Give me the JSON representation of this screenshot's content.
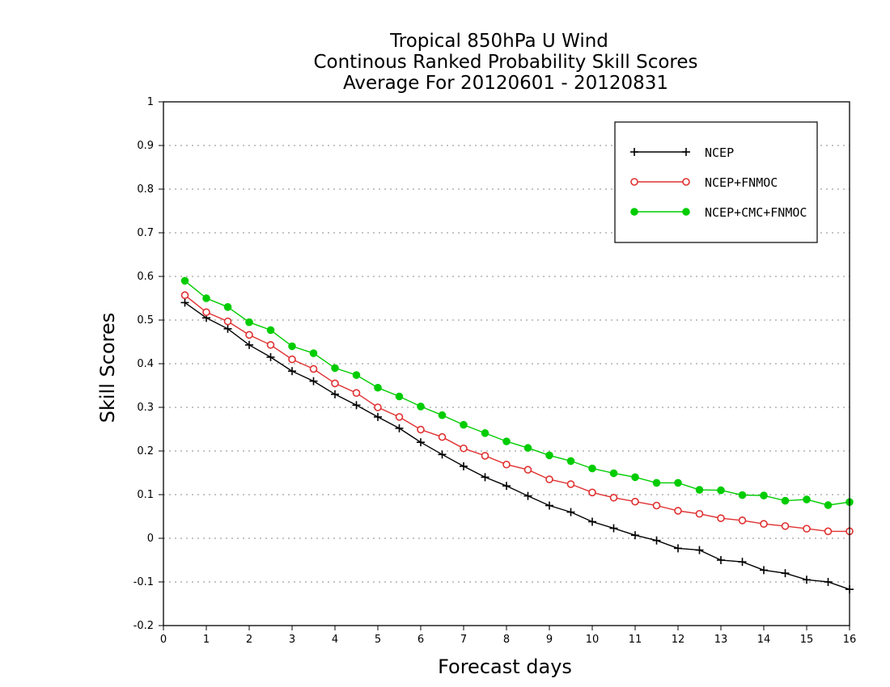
{
  "chart_data": {
    "type": "line",
    "title_lines": [
      "Tropical 850hPa U Wind",
      "Continous Ranked Probability Skill Scores",
      "Average For 20120601 - 20120831"
    ],
    "xlabel": "Forecast days",
    "ylabel": "Skill Scores",
    "xlim": [
      0,
      16
    ],
    "ylim": [
      -0.2,
      1
    ],
    "x_ticks": [
      "0",
      "1",
      "2",
      "3",
      "4",
      "5",
      "6",
      "7",
      "8",
      "9",
      "10",
      "11",
      "12",
      "13",
      "14",
      "15",
      "16"
    ],
    "y_ticks": [
      "-0.2",
      "-0.1",
      "0",
      "0.1",
      "0.2",
      "0.3",
      "0.4",
      "0.5",
      "0.6",
      "0.7",
      "0.8",
      "0.9",
      "1"
    ],
    "grid": "horizontal dotted",
    "legend_position": "top-right",
    "x": [
      0.5,
      1,
      1.5,
      2,
      2.5,
      3,
      3.5,
      4,
      4.5,
      5,
      5.5,
      6,
      6.5,
      7,
      7.5,
      8,
      8.5,
      9,
      9.5,
      10,
      10.5,
      11,
      11.5,
      12,
      12.5,
      13,
      13.5,
      14,
      14.5,
      15,
      15.5,
      16
    ],
    "series": [
      {
        "name": "NCEP",
        "color": "#000000",
        "marker": "plus",
        "values": [
          0.54,
          0.505,
          0.48,
          0.443,
          0.415,
          0.383,
          0.36,
          0.33,
          0.305,
          0.278,
          0.252,
          0.22,
          0.192,
          0.165,
          0.14,
          0.12,
          0.097,
          0.075,
          0.06,
          0.038,
          0.023,
          0.007,
          -0.005,
          -0.023,
          -0.027,
          -0.05,
          -0.054,
          -0.073,
          -0.08,
          -0.095,
          -0.1,
          -0.117
        ]
      },
      {
        "name": "NCEP+FNMOC",
        "color": "#e03030",
        "marker": "open-circle",
        "values": [
          0.557,
          0.518,
          0.497,
          0.466,
          0.443,
          0.41,
          0.388,
          0.355,
          0.333,
          0.3,
          0.278,
          0.249,
          0.232,
          0.206,
          0.189,
          0.169,
          0.157,
          0.135,
          0.124,
          0.105,
          0.093,
          0.084,
          0.075,
          0.063,
          0.056,
          0.046,
          0.041,
          0.033,
          0.028,
          0.022,
          0.016,
          0.016
        ]
      },
      {
        "name": "NCEP+CMC+FNMOC",
        "color": "#00cc00",
        "marker": "filled-circle",
        "values": [
          0.59,
          0.55,
          0.53,
          0.495,
          0.477,
          0.44,
          0.424,
          0.39,
          0.374,
          0.345,
          0.325,
          0.302,
          0.282,
          0.26,
          0.241,
          0.222,
          0.207,
          0.19,
          0.177,
          0.16,
          0.149,
          0.14,
          0.127,
          0.127,
          0.111,
          0.11,
          0.099,
          0.098,
          0.086,
          0.089,
          0.076,
          0.083
        ]
      }
    ]
  }
}
